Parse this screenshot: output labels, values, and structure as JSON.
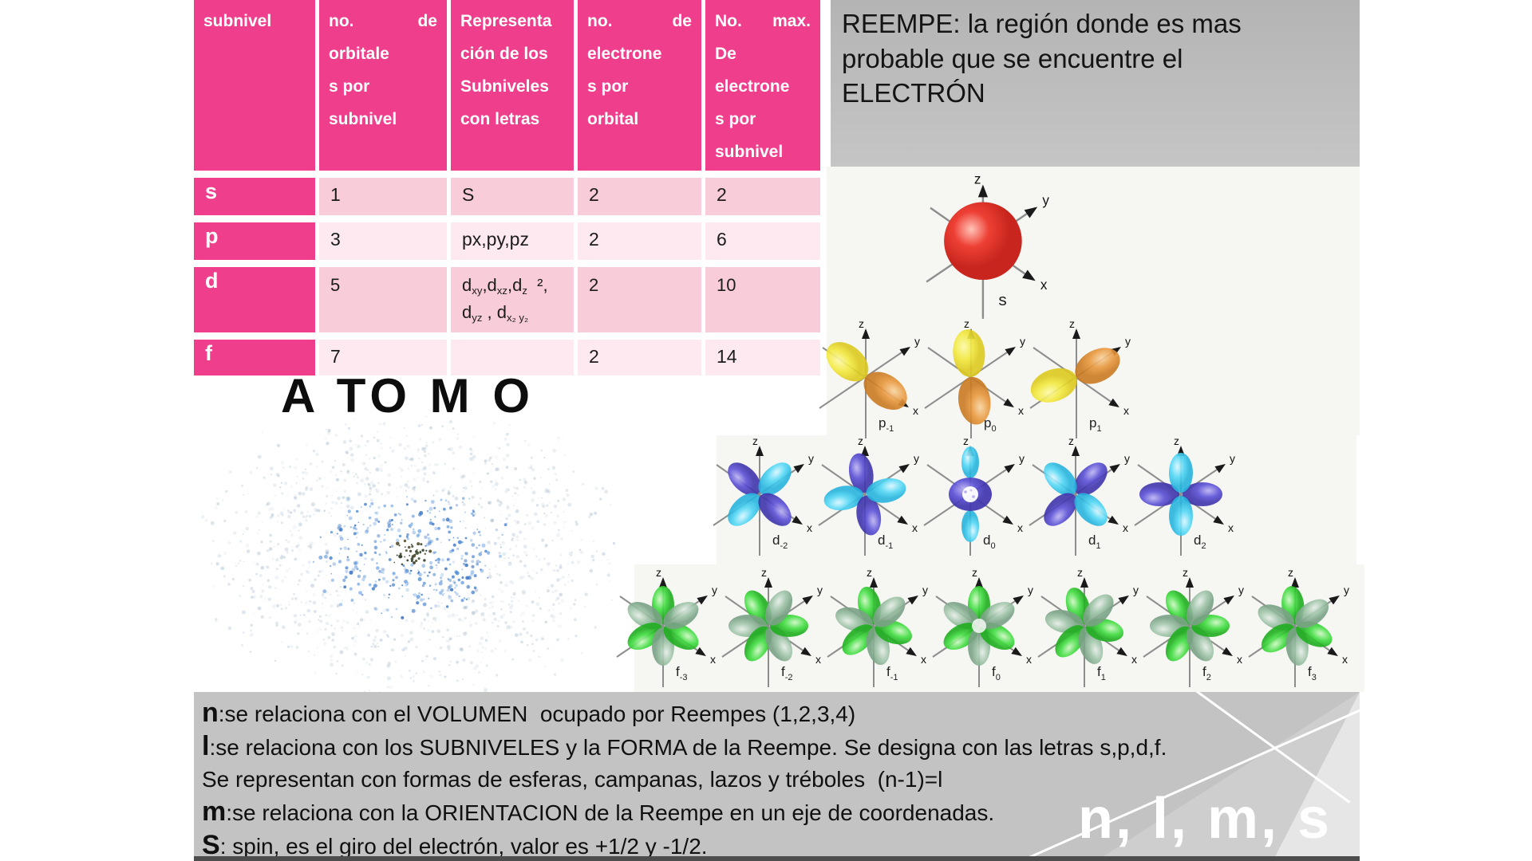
{
  "colors": {
    "header_pink": "#ef3f8c",
    "row_pink_dark": "#f8ccd8",
    "row_pink_light": "#fde9ef",
    "note_gray": "#bcbcbc",
    "footer_gray": "#c3c3c3"
  },
  "table": {
    "headers": [
      [
        "subnivel"
      ],
      [
        "no. de",
        "orbitale",
        "s por",
        "subnivel"
      ],
      [
        "Representa",
        "ción de los",
        "Subniveles",
        "con letras"
      ],
      [
        "no. de",
        "electrone",
        "s por",
        "orbital"
      ],
      [
        "No. max.",
        "De",
        "electrone",
        "s por",
        "subnivel"
      ]
    ],
    "rows": [
      {
        "label": "s",
        "cells": [
          "1",
          "S",
          "2",
          "2"
        ]
      },
      {
        "label": "p",
        "cells": [
          "3",
          "px,py,pz",
          "2",
          "6"
        ]
      },
      {
        "label": "d",
        "cells": [
          "5",
          [
            {
              "t": "d"
            },
            {
              "sub": "xy"
            },
            {
              "t": ",d"
            },
            {
              "sub": "xz"
            },
            {
              "t": ",d"
            },
            {
              "sub": "z"
            },
            {
              "t": "  ²,"
            },
            {
              "br": true
            },
            {
              "t": "d"
            },
            {
              "sub": "yz"
            },
            {
              "t": " , d"
            },
            {
              "sub": "x₂ y₂"
            }
          ],
          "2",
          "10"
        ]
      },
      {
        "label": "f",
        "cells": [
          "7",
          "",
          "2",
          "14"
        ]
      }
    ]
  },
  "reempe": {
    "text": "REEMPE: la región donde es mas\nprobable que se encuentre el\nELECTRÓN"
  },
  "atom": {
    "title": "A TO M O"
  },
  "orbitals": {
    "axis_labels": {
      "z": "z",
      "y": "y",
      "x": "x"
    },
    "rows": [
      {
        "name": "s",
        "items": [
          {
            "base": "s",
            "sub": "",
            "variant": "sphere"
          }
        ]
      },
      {
        "name": "p",
        "items": [
          {
            "base": "p",
            "sub": "-1",
            "variant": "pair",
            "lobes": [
              {
                "a": 140,
                "c": "y"
              },
              {
                "a": 325,
                "c": "o"
              }
            ]
          },
          {
            "base": "p",
            "sub": "0",
            "variant": "pair",
            "lobes": [
              {
                "a": 95,
                "c": "y"
              },
              {
                "a": 278,
                "c": "o"
              }
            ]
          },
          {
            "base": "p",
            "sub": "1",
            "variant": "pair",
            "lobes": [
              {
                "a": 200,
                "c": "y"
              },
              {
                "a": 28,
                "c": "o"
              }
            ]
          }
        ]
      },
      {
        "name": "d",
        "items": [
          {
            "base": "d",
            "sub": "-2",
            "variant": "quad",
            "lobes": [
              {
                "a": 135,
                "c": "pu"
              },
              {
                "a": 45,
                "c": "cy"
              },
              {
                "a": 225,
                "c": "cy"
              },
              {
                "a": 315,
                "c": "pu"
              }
            ]
          },
          {
            "base": "d",
            "sub": "-1",
            "variant": "quad",
            "lobes": [
              {
                "a": 100,
                "c": "pu"
              },
              {
                "a": 190,
                "c": "cy"
              },
              {
                "a": 280,
                "c": "pu"
              },
              {
                "a": 10,
                "c": "cy"
              }
            ]
          },
          {
            "base": "d",
            "sub": "0",
            "variant": "ring"
          },
          {
            "base": "d",
            "sub": "1",
            "variant": "quad",
            "lobes": [
              {
                "a": 45,
                "c": "pu"
              },
              {
                "a": 135,
                "c": "cy"
              },
              {
                "a": 225,
                "c": "pu"
              },
              {
                "a": 315,
                "c": "cy"
              }
            ]
          },
          {
            "base": "d",
            "sub": "2",
            "variant": "quad",
            "lobes": [
              {
                "a": 0,
                "c": "pu"
              },
              {
                "a": 180,
                "c": "pu"
              },
              {
                "a": 90,
                "c": "cy"
              },
              {
                "a": 270,
                "c": "cy"
              }
            ]
          }
        ]
      },
      {
        "name": "f",
        "lobes": [
          {
            "a": 90,
            "c": "g"
          },
          {
            "a": 150,
            "c": "gg"
          },
          {
            "a": 210,
            "c": "g"
          },
          {
            "a": 270,
            "c": "gg"
          },
          {
            "a": 330,
            "c": "g"
          },
          {
            "a": 30,
            "c": "gg"
          }
        ],
        "items": [
          {
            "base": "f",
            "sub": "-3",
            "variant": "flower",
            "rot": 0
          },
          {
            "base": "f",
            "sub": "-2",
            "variant": "flower",
            "rot": 30
          },
          {
            "base": "f",
            "sub": "-1",
            "variant": "flower",
            "rot": 12
          },
          {
            "base": "f",
            "sub": "0",
            "variant": "flower-light",
            "rot": 0
          },
          {
            "base": "f",
            "sub": "1",
            "variant": "flower",
            "rot": 18
          },
          {
            "base": "f",
            "sub": "2",
            "variant": "flower",
            "rot": 30
          },
          {
            "base": "f",
            "sub": "3",
            "variant": "flower",
            "rot": 6
          }
        ]
      }
    ]
  },
  "footer": {
    "lines": [
      {
        "prefix": "n",
        "text": ":se relaciona con el VOLUMEN  ocupado por Reempes (1,2,3,4)"
      },
      {
        "prefix": "l",
        "text": ":se relaciona con los SUBNIVELES y la FORMA de la Reempe. Se designa con las letras s,p,d,f."
      },
      {
        "prefix": "",
        "text": "Se representan con formas de esferas, campanas, lazos y tréboles  (n-1)=l"
      },
      {
        "prefix": "m",
        "text": ":se relaciona con la ORIENTACION de la Reempe en un eje de coordenadas."
      },
      {
        "prefix": "S",
        "text": ": spin, es el giro del electrón, valor es +1/2 y -1/2."
      }
    ],
    "watermark": "n, l, m, s"
  }
}
